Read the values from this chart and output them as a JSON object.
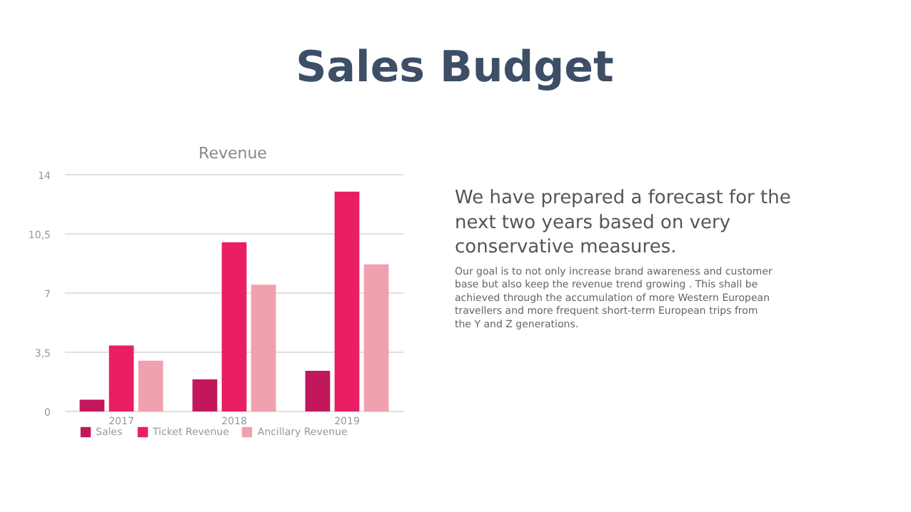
{
  "chart_data": {
    "type": "bar",
    "title": "Sales Budget",
    "subtitle": "Revenue",
    "categories": [
      "2017",
      "2018",
      "2019"
    ],
    "series": [
      {
        "name": "Sales",
        "color": "#c2185b",
        "values": [
          0.7,
          1.9,
          2.4
        ]
      },
      {
        "name": "Ticket Revenue",
        "color": "#e91e63",
        "values": [
          3.9,
          10.0,
          13.0
        ]
      },
      {
        "name": "Ancillary Revenue",
        "color": "#f0a0ae",
        "values": [
          3.0,
          7.5,
          8.7
        ]
      }
    ],
    "ylim": [
      0,
      14
    ],
    "yticks": [
      0,
      {
        "value": 3.5,
        "label": "3,5"
      },
      7,
      {
        "value": 10.5,
        "label": "10,5"
      },
      14
    ],
    "grid": "y",
    "legend": "bottom",
    "annotations": [
      "We have prepared a forecast for the\nnext two years based on very\nconservative measures.",
      "Our goal is to not only increase brand awareness and customer\nbase but also keep the revenue trend growing . This shall be\nachieved through the accumulation of more Western European\ntravellers  and more frequent short-term European trips from\nthe Y and Z generations."
    ]
  }
}
